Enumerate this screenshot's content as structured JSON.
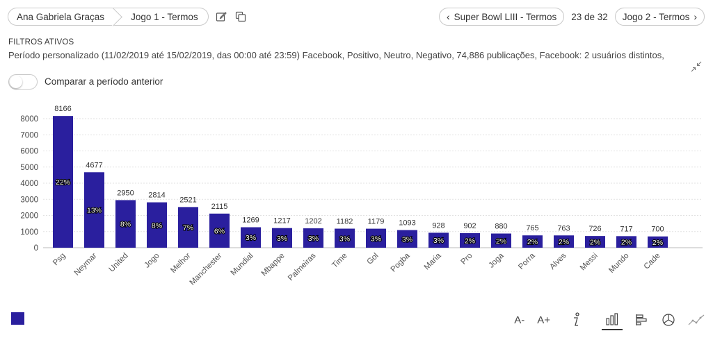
{
  "breadcrumb": {
    "project": "Ana Gabriela Graças",
    "dashboard": "Jogo 1 - Termos"
  },
  "nav": {
    "prev": "Super Bowl LIII - Termos",
    "position": "23 de 32",
    "next": "Jogo 2 - Termos"
  },
  "filters": {
    "title": "FILTROS ATIVOS",
    "text": "Período personalizado (11/02/2019 até 15/02/2019, das 00:00 até 23:59) Facebook, Positivo, Neutro, Negativo, 74,886 publicações, Facebook: 2 usuários distintos,"
  },
  "compare_label": "Comparar a período anterior",
  "font_controls": {
    "decrease": "A-",
    "increase": "A+"
  },
  "chart_data": {
    "type": "bar",
    "categories": [
      "Psg",
      "Neymar",
      "United",
      "Jogo",
      "Melhor",
      "Manchester",
      "Mundial",
      "Mbappe",
      "Palmeiras",
      "Time",
      "Gol",
      "Pogba",
      "Maria",
      "Pro",
      "Joga",
      "Porra",
      "Alves",
      "Messi",
      "Mundo",
      "Cade"
    ],
    "values": [
      8166,
      4677,
      2950,
      2814,
      2521,
      2115,
      1269,
      1217,
      1202,
      1182,
      1179,
      1093,
      928,
      902,
      880,
      765,
      763,
      726,
      717,
      700
    ],
    "percent_labels": [
      "22%",
      "13%",
      "8%",
      "8%",
      "7%",
      "6%",
      "3%",
      "3%",
      "3%",
      "3%",
      "3%",
      "3%",
      "3%",
      "2%",
      "2%",
      "2%",
      "2%",
      "2%",
      "2%",
      "2%"
    ],
    "yticks": [
      "0",
      "1000",
      "2000",
      "3000",
      "4000",
      "5000",
      "6000",
      "7000",
      "8000"
    ],
    "ylim": [
      0,
      8500
    ],
    "grid": true,
    "bar_color": "#2a1f9e"
  }
}
